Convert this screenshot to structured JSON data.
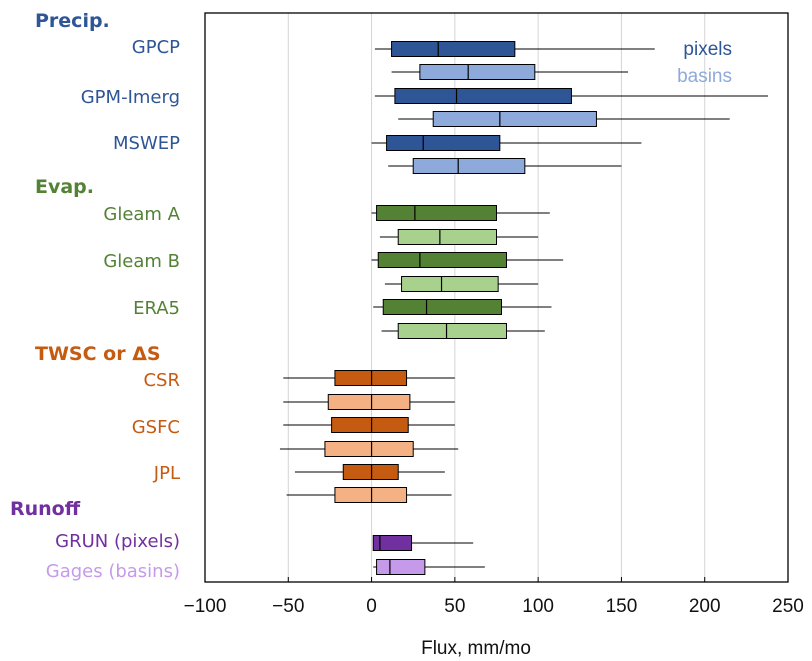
{
  "chart_data": {
    "type": "boxplot",
    "xlabel": "Flux, mm/mo",
    "xlim": [
      -100,
      250
    ],
    "xticks": [
      -100,
      -50,
      0,
      50,
      100,
      150,
      200,
      250
    ],
    "xtick_labels": [
      "−100",
      "−50",
      "0",
      "50",
      "100",
      "150",
      "200",
      "250"
    ],
    "grid": "vertical",
    "legend": {
      "placement": "top-right",
      "entries": [
        {
          "label": "pixels",
          "color": "#2e5596"
        },
        {
          "label": "basins",
          "color": "#8eaadb"
        }
      ]
    },
    "groups": [
      {
        "name": "Precip.",
        "color": "#2e5596",
        "series": [
          {
            "name": "GPCP",
            "boxes": [
              {
                "kind": "pixels",
                "whisker_low": 2,
                "q1": 12,
                "median": 40,
                "q3": 86,
                "whisker_high": 170
              },
              {
                "kind": "basins",
                "whisker_low": 12,
                "q1": 29,
                "median": 58,
                "q3": 98,
                "whisker_high": 154
              }
            ]
          },
          {
            "name": "GPM-Imerg",
            "boxes": [
              {
                "kind": "pixels",
                "whisker_low": 2,
                "q1": 14,
                "median": 51,
                "q3": 120,
                "whisker_high": 238
              },
              {
                "kind": "basins",
                "whisker_low": 16,
                "q1": 37,
                "median": 77,
                "q3": 135,
                "whisker_high": 215
              }
            ]
          },
          {
            "name": "MSWEP",
            "boxes": [
              {
                "kind": "pixels",
                "whisker_low": 0,
                "q1": 9,
                "median": 31,
                "q3": 77,
                "whisker_high": 162
              },
              {
                "kind": "basins",
                "whisker_low": 10,
                "q1": 25,
                "median": 52,
                "q3": 92,
                "whisker_high": 150
              }
            ]
          }
        ]
      },
      {
        "name": "Evap.",
        "color": "#548235",
        "series": [
          {
            "name": "Gleam A",
            "boxes": [
              {
                "kind": "pixels",
                "whisker_low": 0,
                "q1": 3,
                "median": 26,
                "q3": 75,
                "whisker_high": 107
              },
              {
                "kind": "basins",
                "whisker_low": 5,
                "q1": 16,
                "median": 41,
                "q3": 75,
                "whisker_high": 100
              }
            ]
          },
          {
            "name": "Gleam B",
            "boxes": [
              {
                "kind": "pixels",
                "whisker_low": 0,
                "q1": 4,
                "median": 29,
                "q3": 81,
                "whisker_high": 115
              },
              {
                "kind": "basins",
                "whisker_low": 8,
                "q1": 18,
                "median": 42,
                "q3": 76,
                "whisker_high": 100
              }
            ]
          },
          {
            "name": "ERA5",
            "boxes": [
              {
                "kind": "pixels",
                "whisker_low": 1,
                "q1": 7,
                "median": 33,
                "q3": 78,
                "whisker_high": 108
              },
              {
                "kind": "basins",
                "whisker_low": 6,
                "q1": 16,
                "median": 45,
                "q3": 81,
                "whisker_high": 104
              }
            ]
          }
        ]
      },
      {
        "name": "TWSC or ΔS",
        "color": "#c55a11",
        "series": [
          {
            "name": "CSR",
            "boxes": [
              {
                "kind": "pixels",
                "whisker_low": -53,
                "q1": -22,
                "median": 0,
                "q3": 21,
                "whisker_high": 50
              },
              {
                "kind": "basins",
                "whisker_low": -53,
                "q1": -26,
                "median": 0,
                "q3": 23,
                "whisker_high": 50
              }
            ]
          },
          {
            "name": "GSFC",
            "boxes": [
              {
                "kind": "pixels",
                "whisker_low": -53,
                "q1": -24,
                "median": 0,
                "q3": 22,
                "whisker_high": 50
              },
              {
                "kind": "basins",
                "whisker_low": -55,
                "q1": -28,
                "median": 0,
                "q3": 25,
                "whisker_high": 52
              }
            ]
          },
          {
            "name": "JPL",
            "boxes": [
              {
                "kind": "pixels",
                "whisker_low": -46,
                "q1": -17,
                "median": 0,
                "q3": 16,
                "whisker_high": 44
              },
              {
                "kind": "basins",
                "whisker_low": -51,
                "q1": -22,
                "median": 0,
                "q3": 21,
                "whisker_high": 48
              }
            ]
          }
        ]
      },
      {
        "name": "Runoff",
        "color": "#7030a0",
        "series": [
          {
            "name": "GRUN (pixels)",
            "boxes": [
              {
                "kind": "pixels",
                "whisker_low": 1,
                "q1": 1,
                "median": 5,
                "q3": 24,
                "whisker_high": 61
              }
            ]
          },
          {
            "name": "Gages (basins)",
            "color": "#c59aeb",
            "boxes": [
              {
                "kind": "basins",
                "whisker_low": 1,
                "q1": 3,
                "median": 11,
                "q3": 32,
                "whisker_high": 68
              }
            ]
          }
        ]
      }
    ]
  },
  "colors": {
    "precip_pixels": "#2e5596",
    "precip_basins": "#8eaadb",
    "evap_pixels": "#548235",
    "evap_basins": "#a9d18e",
    "twsc_pixels": "#c55a11",
    "twsc_basins": "#f4b183",
    "runoff_pixels": "#7030a0",
    "runoff_basins": "#c59aeb"
  }
}
